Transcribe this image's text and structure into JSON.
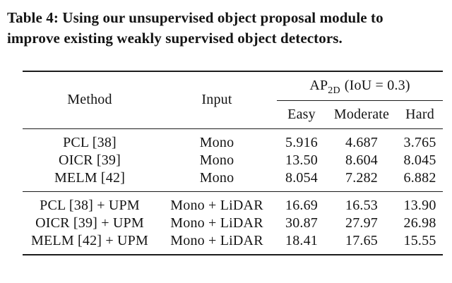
{
  "caption": {
    "line1": "Table 4: Using our unsupervised object proposal module to",
    "line2": "improve existing weakly supervised object detectors."
  },
  "table": {
    "columns": {
      "method": "Method",
      "input": "Input"
    },
    "ap_header": {
      "prefix": "AP",
      "subscript": "2D",
      "suffix": "(IoU = 0.3)"
    },
    "sub_columns": [
      "Easy",
      "Moderate",
      "Hard"
    ],
    "groups": [
      {
        "name": "baseline-detectors",
        "rows": [
          {
            "method": "PCL [38]",
            "input": "Mono",
            "easy": "5.916",
            "moderate": "4.687",
            "hard": "3.765"
          },
          {
            "method": "OICR [39]",
            "input": "Mono",
            "easy": "13.50",
            "moderate": "8.604",
            "hard": "8.045"
          },
          {
            "method": "MELM [42]",
            "input": "Mono",
            "easy": "8.054",
            "moderate": "7.282",
            "hard": "6.882"
          }
        ]
      },
      {
        "name": "with-upm-module",
        "rows": [
          {
            "method": "PCL [38] + UPM",
            "input": "Mono + LiDAR",
            "easy": "16.69",
            "moderate": "16.53",
            "hard": "13.90"
          },
          {
            "method": "OICR [39] + UPM",
            "input": "Mono + LiDAR",
            "easy": "30.87",
            "moderate": "27.97",
            "hard": "26.98"
          },
          {
            "method": "MELM [42] + UPM",
            "input": "Mono + LiDAR",
            "easy": "18.41",
            "moderate": "17.65",
            "hard": "15.55"
          }
        ]
      }
    ],
    "colors": {
      "text": "#141414",
      "rule": "#1c1c1c",
      "background": "#ffffff"
    }
  }
}
